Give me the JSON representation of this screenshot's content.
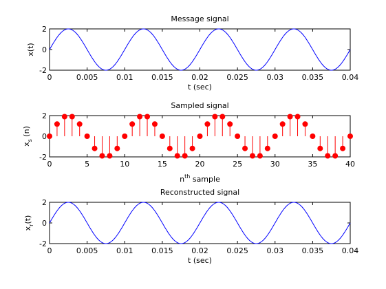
{
  "chart_data": [
    {
      "type": "line",
      "title": "Message signal",
      "xlabel": "t (sec)",
      "ylabel": "x(t)",
      "xlim": [
        0,
        0.04
      ],
      "ylim": [
        -2,
        2
      ],
      "xticks": [
        "0",
        "0.005",
        "0.01",
        "0.015",
        "0.02",
        "0.025",
        "0.03",
        "0.035",
        "0.04"
      ],
      "yticks": [
        "-2",
        "0",
        "2"
      ],
      "series": [
        {
          "amplitude": 2,
          "frequency_hz": 100,
          "color": "#0000ff"
        }
      ]
    },
    {
      "type": "stem",
      "title": "Sampled signal",
      "xlabel": "n",
      "xlabel_sup": "th",
      "xlabel_rest": " sample",
      "ylabel": "x",
      "ylabel_sub": "s",
      "ylabel_rest": " (n)",
      "xlim": [
        0,
        40
      ],
      "ylim": [
        -2,
        2
      ],
      "xticks": [
        "0",
        "5",
        "10",
        "15",
        "20",
        "25",
        "30",
        "35",
        "40"
      ],
      "yticks": [
        "-2",
        "0",
        "2"
      ],
      "series": [
        {
          "color": "#ff0000",
          "x": [
            0,
            1,
            2,
            3,
            4,
            5,
            6,
            7,
            8,
            9,
            10,
            11,
            12,
            13,
            14,
            15,
            16,
            17,
            18,
            19,
            20,
            21,
            22,
            23,
            24,
            25,
            26,
            27,
            28,
            29,
            30,
            31,
            32,
            33,
            34,
            35,
            36,
            37,
            38,
            39,
            40
          ],
          "y": [
            0,
            1.18,
            1.9,
            1.9,
            1.18,
            0,
            -1.18,
            -1.9,
            -1.9,
            -1.18,
            0,
            1.18,
            1.9,
            1.9,
            1.18,
            0,
            -1.18,
            -1.9,
            -1.9,
            -1.18,
            0,
            1.18,
            1.9,
            1.9,
            1.18,
            0,
            -1.18,
            -1.9,
            -1.9,
            -1.18,
            0,
            1.18,
            1.9,
            1.9,
            1.18,
            0,
            -1.18,
            -1.9,
            -1.9,
            -1.18,
            0
          ]
        }
      ]
    },
    {
      "type": "line",
      "title": "Reconstructed signal",
      "xlabel": "t (sec)",
      "ylabel": "x",
      "ylabel_sub": "r",
      "ylabel_rest": "(t)",
      "xlim": [
        0,
        0.04
      ],
      "ylim": [
        -2,
        2
      ],
      "xticks": [
        "0",
        "0.005",
        "0.01",
        "0.015",
        "0.02",
        "0.025",
        "0.03",
        "0.035",
        "0.04"
      ],
      "yticks": [
        "-2",
        "0",
        "2"
      ],
      "series": [
        {
          "amplitude": 2,
          "frequency_hz": 100,
          "color": "#0000ff"
        }
      ]
    }
  ]
}
